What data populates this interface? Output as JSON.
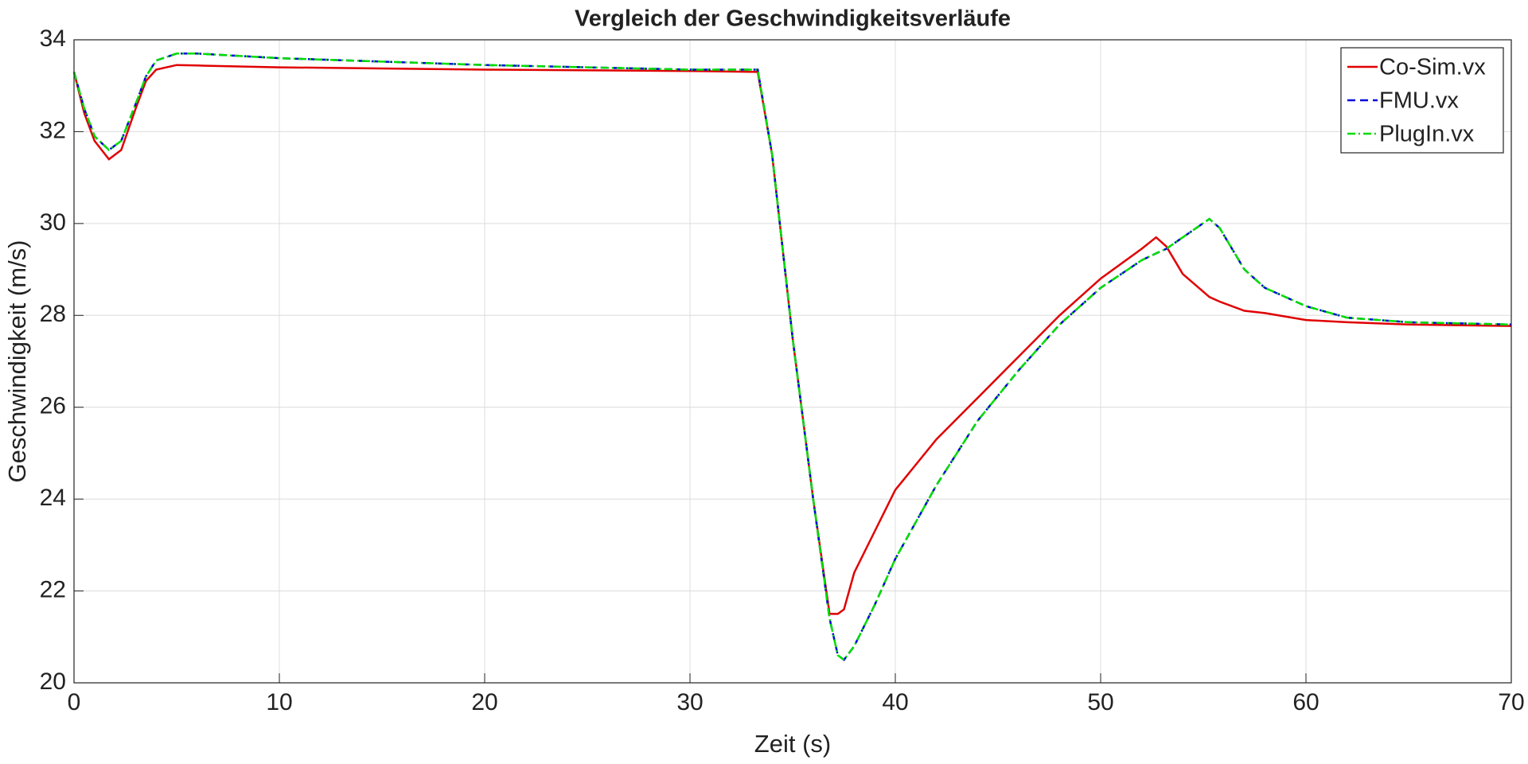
{
  "chart_data": {
    "type": "line",
    "title": "Vergleich der Geschwindigkeitsverläufe",
    "x_label": "Zeit (s)",
    "y_label": "Geschwindigkeit (m/s)",
    "xlim": [
      0,
      70
    ],
    "ylim": [
      20,
      34
    ],
    "xticks": [
      0,
      10,
      20,
      30,
      40,
      50,
      60,
      70
    ],
    "yticks": [
      20,
      22,
      24,
      26,
      28,
      30,
      32,
      34
    ],
    "grid": true,
    "legend": "top-right",
    "x": [
      0,
      0.5,
      1,
      1.7,
      2.3,
      3,
      3.5,
      4,
      5,
      6,
      10,
      20,
      30,
      33.3,
      34,
      35,
      36,
      36.8,
      37.2,
      37.5,
      38,
      39,
      40,
      42,
      44,
      46,
      48,
      50,
      52,
      52.7,
      53.2,
      54,
      55.3,
      55.8,
      57,
      58,
      60,
      62,
      65,
      70
    ],
    "series": [
      {
        "name": "Co-Sim.vx",
        "color": "#e00000",
        "dash": "solid",
        "values": [
          33.3,
          32.4,
          31.8,
          31.4,
          31.6,
          32.5,
          33.1,
          33.35,
          33.45,
          33.44,
          33.4,
          33.35,
          33.32,
          33.3,
          31.5,
          27.5,
          24.0,
          21.5,
          21.5,
          21.6,
          22.4,
          23.3,
          24.2,
          25.3,
          26.2,
          27.1,
          28.0,
          28.8,
          29.45,
          29.7,
          29.5,
          28.9,
          28.4,
          28.3,
          28.1,
          28.05,
          27.9,
          27.85,
          27.8,
          27.77
        ]
      },
      {
        "name": "FMU.vx",
        "color": "#0000dd",
        "dash": "dashed",
        "values": [
          33.3,
          32.5,
          31.9,
          31.6,
          31.8,
          32.6,
          33.2,
          33.55,
          33.7,
          33.7,
          33.6,
          33.45,
          33.35,
          33.35,
          31.5,
          27.5,
          24.0,
          21.4,
          20.6,
          20.5,
          20.8,
          21.7,
          22.7,
          24.3,
          25.7,
          26.8,
          27.8,
          28.6,
          29.2,
          29.35,
          29.45,
          29.7,
          30.1,
          29.9,
          29.0,
          28.6,
          28.2,
          27.95,
          27.85,
          27.8
        ]
      },
      {
        "name": "PlugIn.vx",
        "color": "#00dd00",
        "dash": "dashdot",
        "values": [
          33.3,
          32.5,
          31.9,
          31.6,
          31.8,
          32.6,
          33.2,
          33.55,
          33.7,
          33.7,
          33.6,
          33.45,
          33.35,
          33.35,
          31.5,
          27.5,
          24.0,
          21.4,
          20.6,
          20.5,
          20.8,
          21.7,
          22.7,
          24.3,
          25.7,
          26.8,
          27.8,
          28.6,
          29.2,
          29.35,
          29.45,
          29.7,
          30.1,
          29.9,
          29.0,
          28.6,
          28.2,
          27.95,
          27.85,
          27.8
        ]
      }
    ]
  }
}
